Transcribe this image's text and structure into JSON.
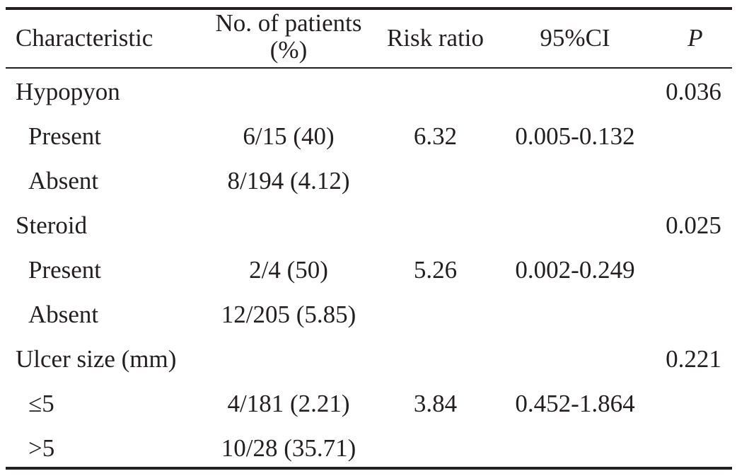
{
  "table": {
    "headers": {
      "characteristic": "Characteristic",
      "patients_line1": "No. of patients",
      "patients_line2": "(%)",
      "risk_ratio": "Risk ratio",
      "ci": "95%CI",
      "p": "P"
    },
    "rows": [
      {
        "characteristic": "Hypopyon",
        "patients": "",
        "risk_ratio": "",
        "ci": "",
        "p": "0.036"
      },
      {
        "characteristic": "Present",
        "patients": "6/15 (40)",
        "risk_ratio": "6.32",
        "ci": "0.005-0.132",
        "p": ""
      },
      {
        "characteristic": "Absent",
        "patients": "8/194 (4.12)",
        "risk_ratio": "",
        "ci": "",
        "p": ""
      },
      {
        "characteristic": "Steroid",
        "patients": "",
        "risk_ratio": "",
        "ci": "",
        "p": "0.025"
      },
      {
        "characteristic": "Present",
        "patients": "2/4 (50)",
        "risk_ratio": "5.26",
        "ci": "0.002-0.249",
        "p": ""
      },
      {
        "characteristic": "Absent",
        "patients": "12/205 (5.85)",
        "risk_ratio": "",
        "ci": "",
        "p": ""
      },
      {
        "characteristic": "Ulcer size (mm)",
        "patients": "",
        "risk_ratio": "",
        "ci": "",
        "p": "0.221"
      },
      {
        "characteristic": "≤5",
        "patients": "4/181 (2.21)",
        "risk_ratio": "3.84",
        "ci": "0.452-1.864",
        "p": ""
      },
      {
        "characteristic": ">5",
        "patients": "10/28 (35.71)",
        "risk_ratio": "",
        "ci": "",
        "p": ""
      }
    ]
  }
}
